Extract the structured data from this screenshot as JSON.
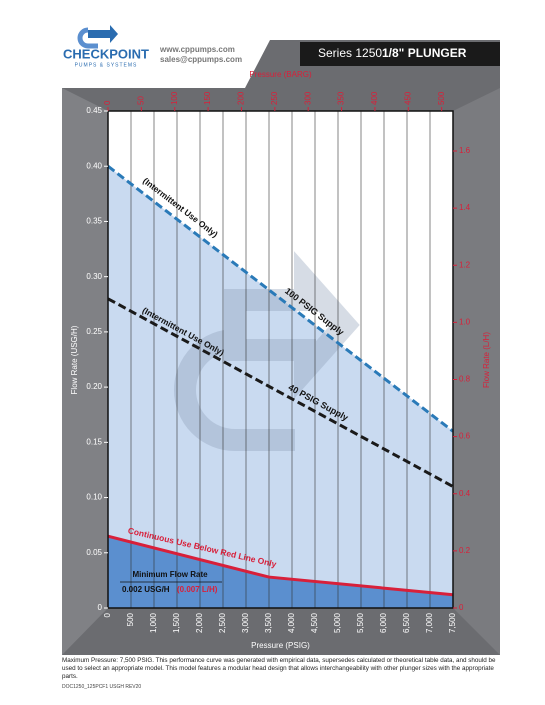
{
  "header": {
    "brand": "CHECKPOINT",
    "tagline": "PUMPS & SYSTEMS",
    "website": "www.cppumps.com",
    "email": "sales@cppumps.com",
    "title_series": "Series 1250",
    "title_model": "1/8\" PLUNGER"
  },
  "chart_data": {
    "type": "line",
    "xlabel": "Pressure (PSIG)",
    "x2label": "Pressure (BARG)",
    "ylabel": "Flow Rate (USG/H)",
    "y2label": "Flow Rate (L/H)",
    "xlim": [
      0,
      7500
    ],
    "x2lim": [
      0,
      517
    ],
    "ylim": [
      0,
      0.45
    ],
    "y2lim": [
      0,
      1.74
    ],
    "xticks": [
      0,
      500,
      {
        "value": 1000,
        "label": "1,000"
      },
      {
        "value": 1500,
        "label": "1,500"
      },
      {
        "value": 2000,
        "label": "2,000"
      },
      {
        "value": 2500,
        "label": "2,500"
      },
      {
        "value": 3000,
        "label": "3,000"
      },
      {
        "value": 3500,
        "label": "3,500"
      },
      {
        "value": 4000,
        "label": "4,000"
      },
      {
        "value": 4500,
        "label": "4,500"
      },
      {
        "value": 5000,
        "label": "5,000"
      },
      {
        "value": 5500,
        "label": "5,500"
      },
      {
        "value": 6000,
        "label": "6,000"
      },
      {
        "value": 6500,
        "label": "6,500"
      },
      {
        "value": 7000,
        "label": "7,000"
      },
      {
        "value": 7500,
        "label": "7,500"
      }
    ],
    "x2ticks": [
      0,
      50,
      100,
      150,
      200,
      250,
      300,
      350,
      400,
      450,
      500
    ],
    "yticks": [
      0,
      0.05,
      {
        "value": 0.1,
        "label": "0.10"
      },
      0.15,
      {
        "value": 0.2,
        "label": "0.20"
      },
      0.25,
      {
        "value": 0.3,
        "label": "0.30"
      },
      0.35,
      {
        "value": 0.4,
        "label": "0.40"
      },
      0.45
    ],
    "y2ticks": [
      0,
      0.2,
      0.4,
      0.6,
      0.8,
      {
        "value": 1,
        "label": "1.0"
      },
      1.2,
      1.4,
      1.6
    ],
    "grid": "x",
    "series": [
      {
        "name": "100 PSIG Supply",
        "color": "#2a7ab8",
        "fill": "#c9daf0",
        "dash": true,
        "x": [
          0,
          7500
        ],
        "values": [
          0.4,
          0.16
        ]
      },
      {
        "name": "40 PSIG Supply",
        "color": "#1a1a1a",
        "dash": true,
        "x": [
          0,
          7500
        ],
        "values": [
          0.28,
          0.11
        ]
      },
      {
        "color": "#d8203a",
        "fill": "#5b8fcf",
        "dash": false,
        "x": [
          0,
          3500,
          7500
        ],
        "values": [
          0.065,
          0.028,
          0.012
        ]
      }
    ],
    "annotations": [
      "(Intermittent Use Only)",
      "(Intermittent Use Only)",
      "Continuous Use Below Red Line Only"
    ],
    "min_flow": {
      "label": "Minimum Flow Rate",
      "usg": "0.002 USG/H",
      "lh": "(0.007 L/H)"
    }
  },
  "footer": {
    "note": "Maximum Pressure: 7,500 PSIG. This performance curve was generated with empirical data, supersedes calculated or theoretical table data, and should be used to select an appropriate model. This model features a modular head design that allows interchangeability with other plunger sizes with the appropriate parts.",
    "doc": "DOC1250_125PCF1 USGH REV20"
  }
}
